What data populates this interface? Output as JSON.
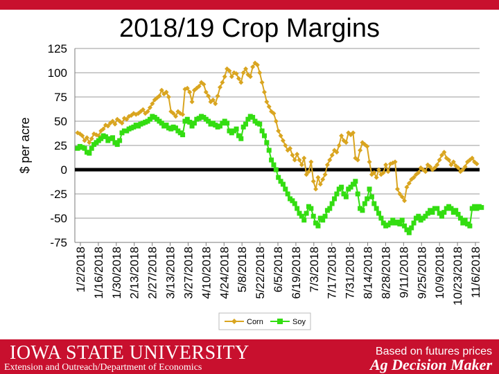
{
  "title": "2018/19 Crop Margins",
  "colors": {
    "brand": "#c8102e",
    "corn": "#d9a520",
    "soy": "#33dd11",
    "zero_line": "#000000",
    "grid": "#9a9a9a"
  },
  "footer": {
    "university": "IOWA STATE UNIVERSITY",
    "department": "Extension and Outreach/Department of Economics",
    "note": "Based on futures prices",
    "brand": "Ag Decision Maker"
  },
  "chart_data": {
    "type": "line",
    "ylabel": "$ per acre",
    "xlabel": "",
    "ylim": [
      -75,
      125
    ],
    "yticks": [
      125,
      100,
      75,
      50,
      25,
      0,
      -25,
      -50,
      -75
    ],
    "grid": true,
    "legend_position": "bottom",
    "xtick_labels": [
      "1/2/2018",
      "1/16/2018",
      "1/30/2018",
      "2/13/2018",
      "2/27/2018",
      "3/13/2018",
      "3/27/2018",
      "4/10/2018",
      "4/24/2018",
      "5/8/2018",
      "5/22/2018",
      "6/5/2018",
      "6/19/2018",
      "7/3/2018",
      "7/17/2018",
      "7/31/2018",
      "8/14/2018",
      "8/28/2018",
      "9/11/2018",
      "9/25/2018",
      "10/9/2018",
      "10/23/2018",
      "11/6/2018"
    ],
    "series": [
      {
        "name": "Corn",
        "color": "#d9a520",
        "marker": "diamond",
        "values": [
          38,
          37,
          35,
          30,
          33,
          28,
          32,
          37,
          36,
          35,
          40,
          42,
          46,
          45,
          48,
          50,
          47,
          52,
          50,
          48,
          53,
          52,
          55,
          56,
          58,
          57,
          58,
          60,
          62,
          58,
          60,
          64,
          68,
          72,
          74,
          76,
          82,
          78,
          80,
          75,
          60,
          58,
          55,
          60,
          58,
          57,
          83,
          84,
          80,
          70,
          82,
          84,
          86,
          90,
          88,
          80,
          76,
          70,
          72,
          68,
          76,
          85,
          90,
          96,
          104,
          102,
          96,
          100,
          99,
          94,
          90,
          100,
          104,
          98,
          96,
          106,
          110,
          108,
          100,
          90,
          80,
          70,
          65,
          60,
          58,
          50,
          40,
          35,
          30,
          25,
          20,
          22,
          15,
          10,
          16,
          10,
          5,
          12,
          -5,
          -2,
          8,
          -12,
          -20,
          -8,
          -15,
          -10,
          -5,
          5,
          10,
          15,
          20,
          18,
          25,
          35,
          30,
          28,
          38,
          36,
          38,
          12,
          10,
          20,
          28,
          26,
          24,
          8,
          -5,
          -3,
          -8,
          0,
          -5,
          -3,
          5,
          -2,
          6,
          7,
          8,
          -20,
          -25,
          -28,
          -32,
          -18,
          -14,
          -10,
          -8,
          -5,
          -3,
          2,
          0,
          -2,
          5,
          3,
          0,
          2,
          5,
          10,
          15,
          18,
          12,
          10,
          5,
          8,
          4,
          2,
          -2,
          0,
          3,
          8,
          10,
          12,
          8,
          6
        ]
      },
      {
        "name": "Soy",
        "color": "#33dd11",
        "marker": "square",
        "values": [
          22,
          24,
          23,
          22,
          18,
          17,
          22,
          26,
          28,
          30,
          32,
          35,
          34,
          30,
          32,
          33,
          28,
          26,
          30,
          38,
          40,
          40,
          42,
          43,
          44,
          46,
          45,
          47,
          48,
          49,
          50,
          52,
          55,
          54,
          52,
          50,
          48,
          45,
          46,
          43,
          42,
          44,
          43,
          40,
          38,
          36,
          50,
          52,
          49,
          45,
          48,
          52,
          53,
          55,
          54,
          52,
          50,
          47,
          48,
          46,
          44,
          45,
          48,
          50,
          48,
          40,
          38,
          40,
          42,
          35,
          32,
          44,
          47,
          52,
          55,
          54,
          50,
          48,
          47,
          40,
          35,
          28,
          20,
          10,
          5,
          0,
          -8,
          -12,
          -15,
          -20,
          -25,
          -30,
          -32,
          -35,
          -40,
          -45,
          -48,
          -52,
          -45,
          -38,
          -40,
          -48,
          -55,
          -58,
          -50,
          -52,
          -48,
          -42,
          -40,
          -35,
          -30,
          -25,
          -20,
          -18,
          -25,
          -28,
          -20,
          -18,
          -15,
          -12,
          -25,
          -40,
          -42,
          -35,
          -30,
          -20,
          -28,
          -35,
          -40,
          -45,
          -50,
          -55,
          -58,
          -57,
          -55,
          -52,
          -55,
          -54,
          -56,
          -52,
          -58,
          -62,
          -65,
          -60,
          -55,
          -50,
          -48,
          -52,
          -50,
          -48,
          -45,
          -42,
          -44,
          -40,
          -40,
          -45,
          -48,
          -44,
          -40,
          -38,
          -40,
          -44,
          -42,
          -46,
          -50,
          -55,
          -52,
          -56,
          -58,
          -40,
          -38,
          -40,
          -38,
          -39
        ]
      }
    ]
  }
}
